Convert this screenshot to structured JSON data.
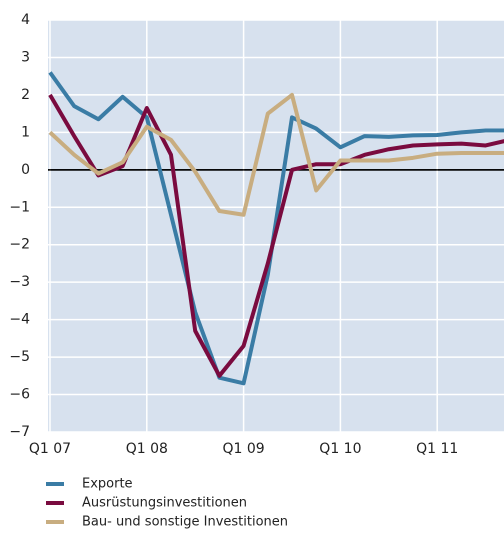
{
  "chart_data": {
    "type": "line",
    "categories": [
      "Q1 07",
      null,
      null,
      null,
      "Q1 08",
      null,
      null,
      null,
      "Q1 09",
      null,
      null,
      null,
      "Q1 10",
      null,
      null,
      null,
      "Q1 11",
      null,
      null,
      null
    ],
    "series": [
      {
        "name": "Exporte",
        "color": "#3a7ca5",
        "values": [
          2.6,
          1.7,
          1.35,
          1.95,
          1.4,
          -1.2,
          -3.8,
          -5.55,
          -5.7,
          -2.8,
          1.4,
          1.1,
          0.6,
          0.9,
          0.88,
          0.92,
          0.93,
          1.0,
          1.05,
          1.05
        ]
      },
      {
        "name": "Ausrüstungsinvestitionen",
        "color": "#7a0b3f",
        "values": [
          2.0,
          0.9,
          -0.15,
          0.1,
          1.65,
          0.4,
          -4.3,
          -5.5,
          -4.7,
          -2.5,
          0.0,
          0.15,
          0.15,
          0.4,
          0.55,
          0.65,
          0.68,
          0.7,
          0.65,
          0.8
        ]
      },
      {
        "name": "Bau- und sonstige Investitionen",
        "color": "#c8ad80",
        "values": [
          1.0,
          0.4,
          -0.1,
          0.2,
          1.15,
          0.8,
          -0.05,
          -1.1,
          -1.2,
          1.5,
          2.0,
          -0.55,
          0.25,
          0.25,
          0.25,
          0.32,
          0.43,
          0.45,
          0.45,
          0.45
        ]
      }
    ],
    "ylim": [
      -7,
      4
    ],
    "yticks": [
      4,
      3,
      2,
      1,
      0,
      {
        "value": -1,
        "label": "−1"
      },
      {
        "value": -2,
        "label": "−2"
      },
      {
        "value": -3,
        "label": "−3"
      },
      {
        "value": -4,
        "label": "−4"
      },
      {
        "value": -5,
        "label": "−5"
      },
      {
        "value": -6,
        "label": "−6"
      },
      {
        "value": -7,
        "label": "−7"
      }
    ],
    "grid": true,
    "legend": "bottom"
  }
}
